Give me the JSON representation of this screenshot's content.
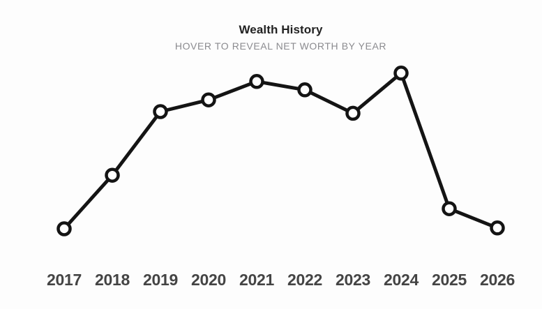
{
  "page": {
    "background_color": "#fdfdfd"
  },
  "header": {
    "title": "Wealth History",
    "subtitle": "HOVER TO REVEAL NET WORTH BY YEAR"
  },
  "chart_data": {
    "type": "line",
    "title": "Wealth History",
    "subtitle": "HOVER TO REVEAL NET WORTH BY YEAR",
    "x": [
      "2017",
      "2018",
      "2019",
      "2020",
      "2021",
      "2022",
      "2023",
      "2024",
      "2025",
      "2026"
    ],
    "values": [
      5,
      37,
      75,
      82,
      93,
      88,
      74,
      98,
      17,
      5.5
    ],
    "value_units": "relative-net-worth (y-axis not shown; values revealed on hover)",
    "xlabel": "",
    "ylabel": "",
    "ylim": [
      0,
      100
    ],
    "grid": false,
    "legend": false,
    "y_axis_visible": false,
    "x_axis_line_visible": false,
    "line_color": "#141414",
    "line_width": 5,
    "marker": "open-circle",
    "marker_fill": "#ffffff",
    "marker_stroke": "#141414",
    "marker_radius": 8.5,
    "marker_stroke_width": 4.5,
    "x_label_color": "#444444"
  }
}
